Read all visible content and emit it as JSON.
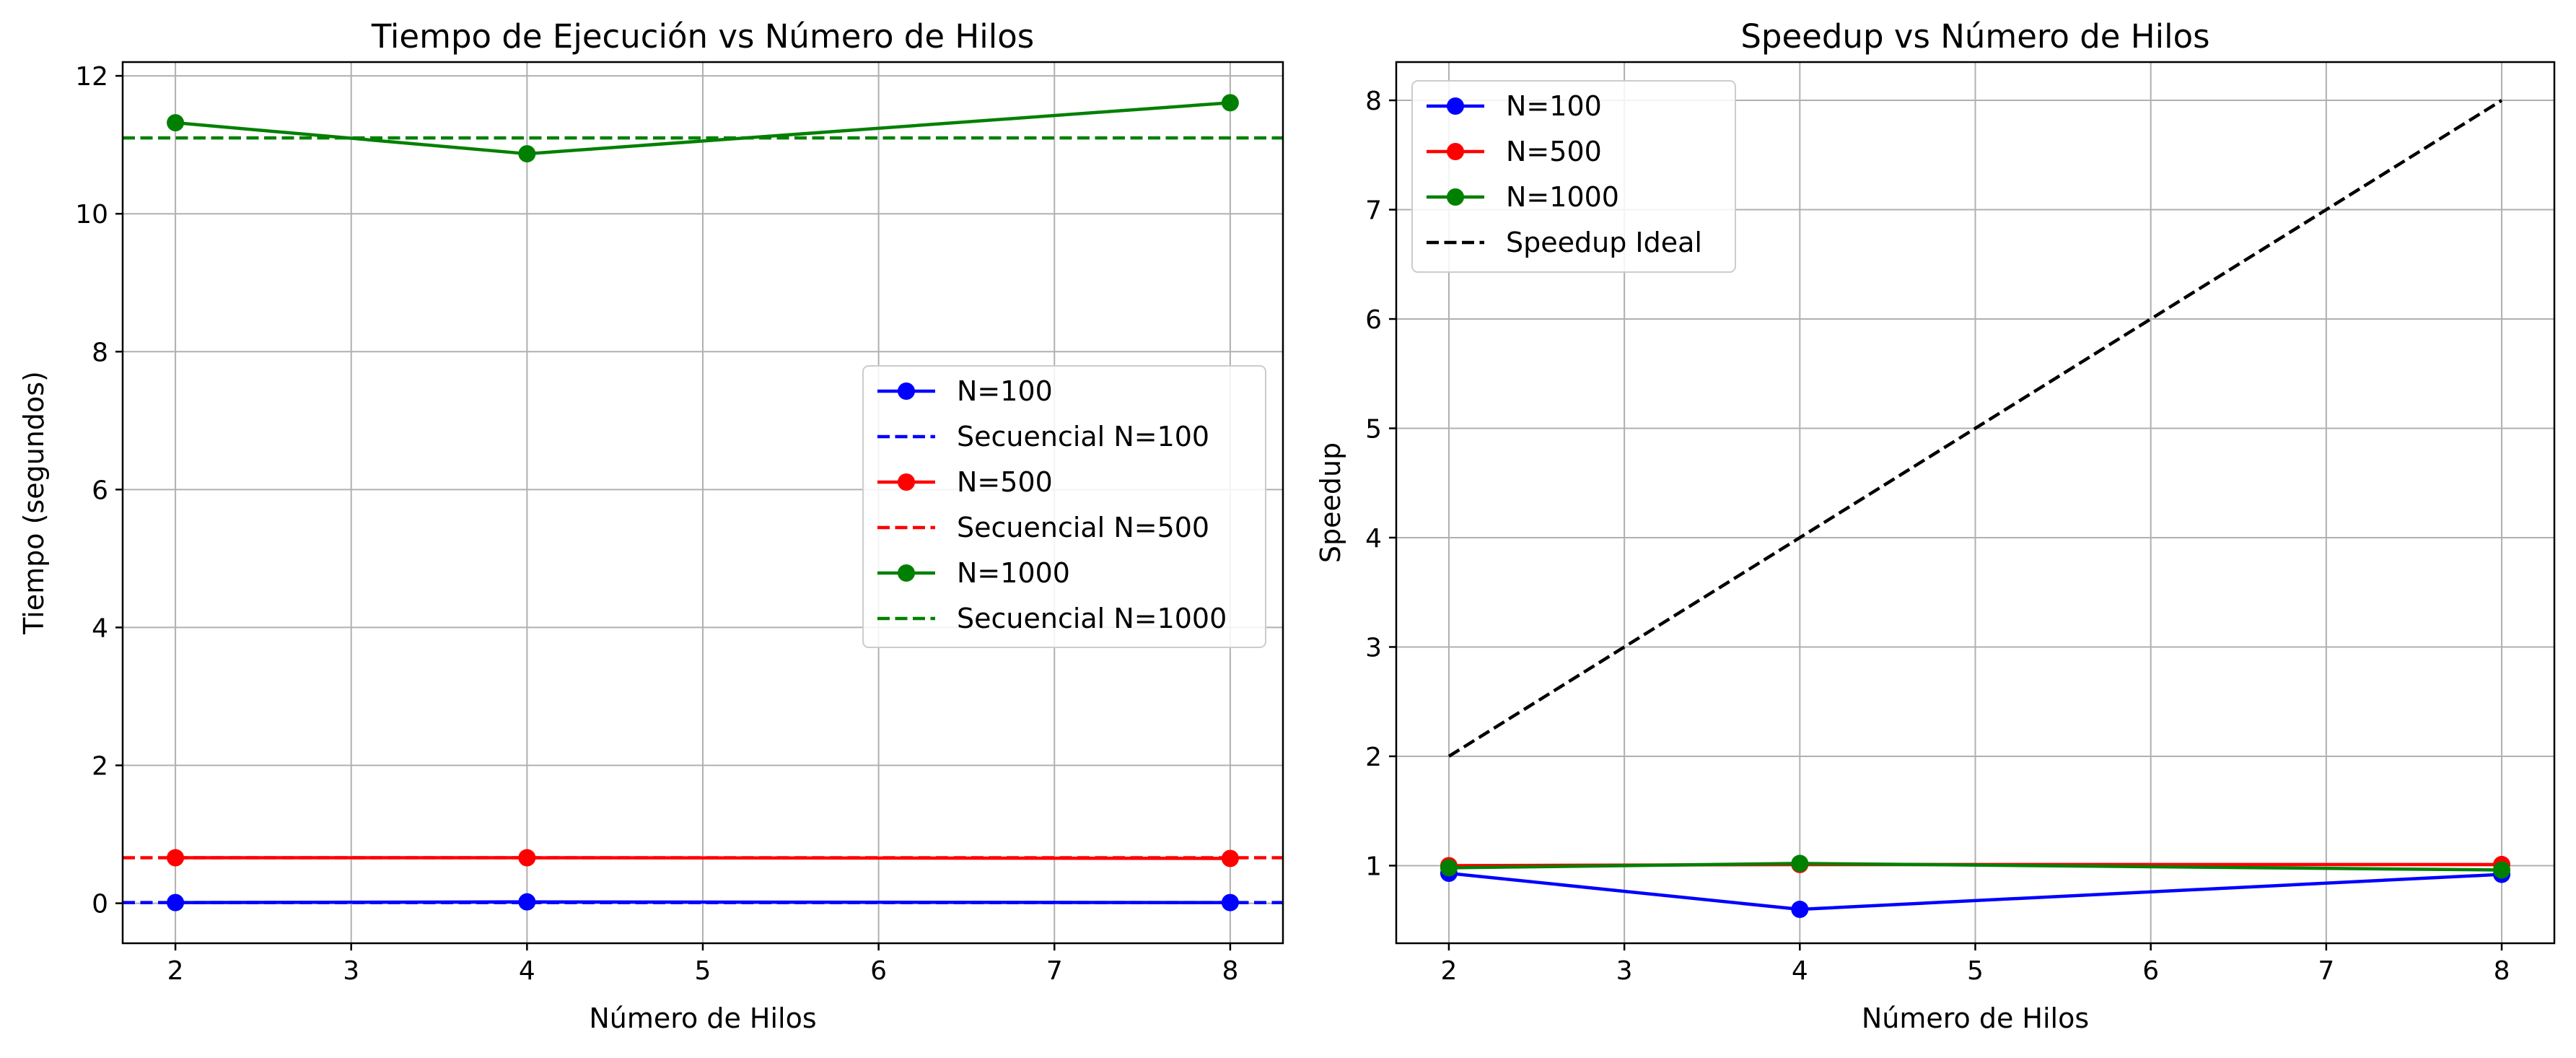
{
  "chart_data": [
    {
      "type": "line",
      "title": "Tiempo de Ejecución vs Número de Hilos",
      "xlabel": "Número de Hilos",
      "ylabel": "Tiempo (segundos)",
      "xlim": [
        1.7,
        8.3
      ],
      "ylim": [
        -0.58,
        12.2
      ],
      "xticks": [
        2,
        3,
        4,
        5,
        6,
        7,
        8
      ],
      "yticks": [
        0,
        2,
        4,
        6,
        8,
        10,
        12
      ],
      "grid": true,
      "legend_position": "center-right",
      "series": [
        {
          "name": "N=100",
          "style": "line-marker",
          "color": "#0000ff",
          "x": [
            2,
            4,
            8
          ],
          "y": [
            0.01,
            0.02,
            0.01
          ]
        },
        {
          "name": "Secuencial N=100",
          "style": "dashed-hline",
          "color": "#0000ff",
          "y": 0.01
        },
        {
          "name": "N=500",
          "style": "line-marker",
          "color": "#ff0000",
          "x": [
            2,
            4,
            8
          ],
          "y": [
            0.66,
            0.66,
            0.65
          ]
        },
        {
          "name": "Secuencial N=500",
          "style": "dashed-hline",
          "color": "#ff0000",
          "y": 0.66
        },
        {
          "name": "N=1000",
          "style": "line-marker",
          "color": "#008000",
          "x": [
            2,
            4,
            8
          ],
          "y": [
            11.32,
            10.87,
            11.61
          ]
        },
        {
          "name": "Secuencial N=1000",
          "style": "dashed-hline",
          "color": "#008000",
          "y": 11.1
        }
      ]
    },
    {
      "type": "line",
      "title": "Speedup vs Número de Hilos",
      "xlabel": "Número de Hilos",
      "ylabel": "Speedup",
      "xlim": [
        1.7,
        8.3
      ],
      "ylim": [
        0.29,
        8.35
      ],
      "xticks": [
        2,
        3,
        4,
        5,
        6,
        7,
        8
      ],
      "yticks": [
        1,
        2,
        3,
        4,
        5,
        6,
        7,
        8
      ],
      "grid": true,
      "legend_position": "top-left",
      "series": [
        {
          "name": "N=100",
          "style": "line-marker",
          "color": "#0000ff",
          "x": [
            2,
            4,
            8
          ],
          "y": [
            0.93,
            0.6,
            0.92
          ]
        },
        {
          "name": "N=500",
          "style": "line-marker",
          "color": "#ff0000",
          "x": [
            2,
            4,
            8
          ],
          "y": [
            1.0,
            1.01,
            1.01
          ]
        },
        {
          "name": "N=1000",
          "style": "line-marker",
          "color": "#008000",
          "x": [
            2,
            4,
            8
          ],
          "y": [
            0.98,
            1.02,
            0.96
          ]
        },
        {
          "name": "Speedup Ideal",
          "style": "dashed-line",
          "color": "#000000",
          "x": [
            2,
            8
          ],
          "y": [
            2,
            8
          ]
        }
      ]
    }
  ]
}
